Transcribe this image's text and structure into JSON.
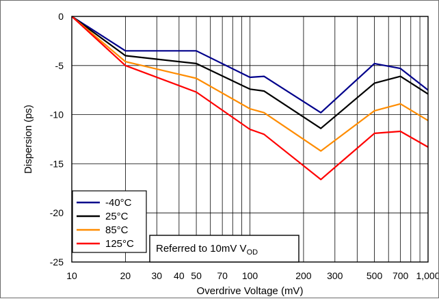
{
  "chart_data": {
    "type": "line",
    "xlabel": "Overdrive Voltage (mV)",
    "ylabel": "Dispersion (ps)",
    "xscale": "log",
    "xlim": [
      10,
      1000
    ],
    "ylim": [
      -25,
      0
    ],
    "grid": true,
    "x_tick_values": [
      10,
      20,
      30,
      40,
      50,
      70,
      100,
      200,
      300,
      500,
      700,
      1000
    ],
    "x_tick_labels": [
      "10",
      "20",
      "30",
      "40",
      "50",
      "70",
      "100",
      "200",
      "300",
      "500",
      "700",
      "1,000"
    ],
    "y_tick_values": [
      0,
      -5,
      -10,
      -15,
      -20,
      -25
    ],
    "y_tick_labels": [
      "0",
      "-5",
      "-10",
      "-15",
      "-20",
      "-25"
    ],
    "legend_position": "bottom-left",
    "annotation": {
      "text": "Referred to 10mV V",
      "subscript": "OD"
    },
    "x": [
      10,
      20,
      50,
      100,
      120,
      250,
      500,
      700,
      1000
    ],
    "series": [
      {
        "name": "-40°C",
        "color": "#00008b",
        "values": [
          0,
          -3.5,
          -3.5,
          -6.2,
          -6.1,
          -9.8,
          -4.8,
          -5.3,
          -7.5
        ]
      },
      {
        "name": "25°C",
        "color": "#000000",
        "values": [
          0,
          -4.0,
          -4.8,
          -7.4,
          -7.6,
          -11.4,
          -6.8,
          -6.1,
          -7.9
        ]
      },
      {
        "name": "85°C",
        "color": "#ff8c00",
        "values": [
          0,
          -4.6,
          -6.3,
          -9.4,
          -9.8,
          -13.7,
          -9.6,
          -8.9,
          -10.6
        ]
      },
      {
        "name": "125°C",
        "color": "#ff0000",
        "values": [
          0,
          -5.0,
          -7.7,
          -11.5,
          -12.0,
          -16.6,
          -11.9,
          -11.7,
          -13.3
        ]
      }
    ]
  }
}
